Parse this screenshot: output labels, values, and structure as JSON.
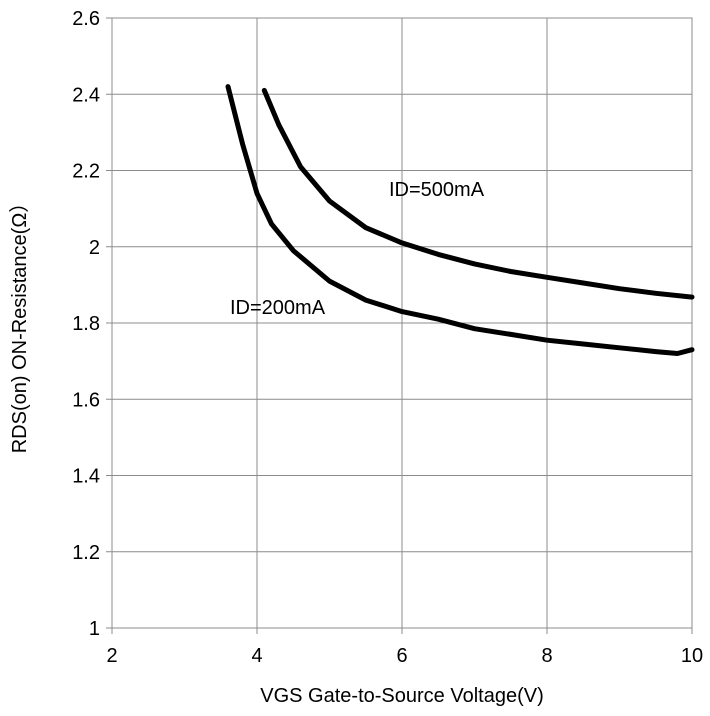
{
  "chart_data": {
    "type": "line",
    "xlabel": "VGS Gate-to-Source Voltage(V)",
    "ylabel": "RDS(on) ON-Resistance(Ω）",
    "xlim": [
      2,
      10
    ],
    "ylim": [
      1,
      2.6
    ],
    "x_ticks": [
      "2",
      "4",
      "6",
      "8",
      "10"
    ],
    "y_ticks": [
      "1",
      "1.2",
      "1.4",
      "1.6",
      "1.8",
      "2",
      "2.2",
      "2.4",
      "2.6"
    ],
    "grid": true,
    "series": [
      {
        "name": "ID=500mA",
        "x": [
          4.1,
          4.3,
          4.6,
          5.0,
          5.5,
          6.0,
          6.5,
          7.0,
          7.5,
          8.0,
          8.5,
          9.0,
          9.5,
          10.0
        ],
        "y": [
          2.41,
          2.32,
          2.21,
          2.12,
          2.05,
          2.01,
          1.98,
          1.955,
          1.935,
          1.92,
          1.905,
          1.89,
          1.878,
          1.868
        ]
      },
      {
        "name": "ID=200mA",
        "x": [
          3.6,
          3.8,
          4.0,
          4.2,
          4.5,
          5.0,
          5.5,
          6.0,
          6.5,
          7.0,
          7.5,
          8.0,
          8.5,
          9.0,
          9.5,
          9.8,
          10.0
        ],
        "y": [
          2.42,
          2.27,
          2.14,
          2.06,
          1.99,
          1.91,
          1.86,
          1.83,
          1.81,
          1.785,
          1.77,
          1.755,
          1.745,
          1.735,
          1.725,
          1.72,
          1.73
        ]
      }
    ]
  }
}
